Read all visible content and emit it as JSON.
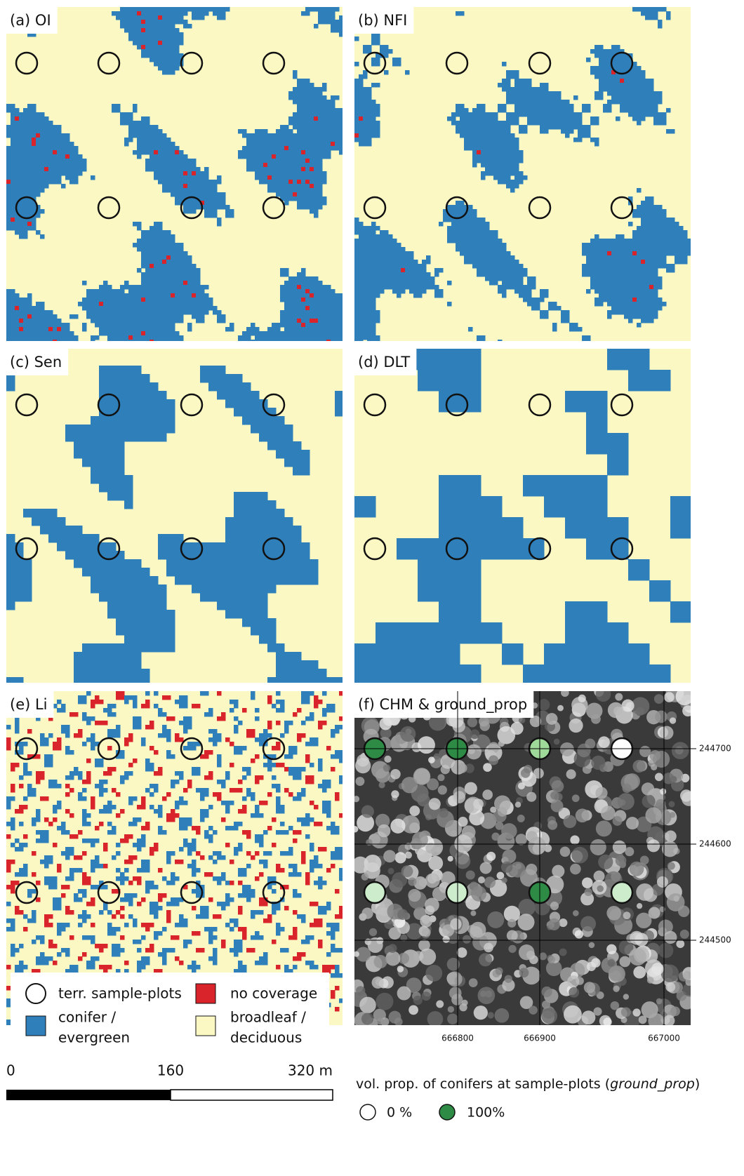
{
  "panels": [
    {
      "label": "(a) OI"
    },
    {
      "label": "(b) NFI"
    },
    {
      "label": "(c) Sen"
    },
    {
      "label": "(d) DLT"
    },
    {
      "label": "(e) Li"
    },
    {
      "label": "(f) CHM & ground_prop"
    }
  ],
  "panel_f": {
    "x_ticks": [
      "666800",
      "666900",
      "667000"
    ],
    "y_ticks": [
      "244700",
      "244600",
      "244500"
    ]
  },
  "legend": {
    "sample_plots": "terr. sample-plots",
    "no_coverage": "no coverage",
    "conifer": [
      "conifer /",
      "evergreen"
    ],
    "broadleaf": [
      "broadleaf /",
      "deciduous"
    ]
  },
  "scale_bar": {
    "labels": [
      "0",
      "160",
      "320 m"
    ]
  },
  "conifer_legend": {
    "title_prefix": "vol. prop. of conifers at sample-plots (",
    "title_italic": "ground_prop",
    "title_suffix": ")",
    "low": "0 %",
    "high": "100%"
  }
}
